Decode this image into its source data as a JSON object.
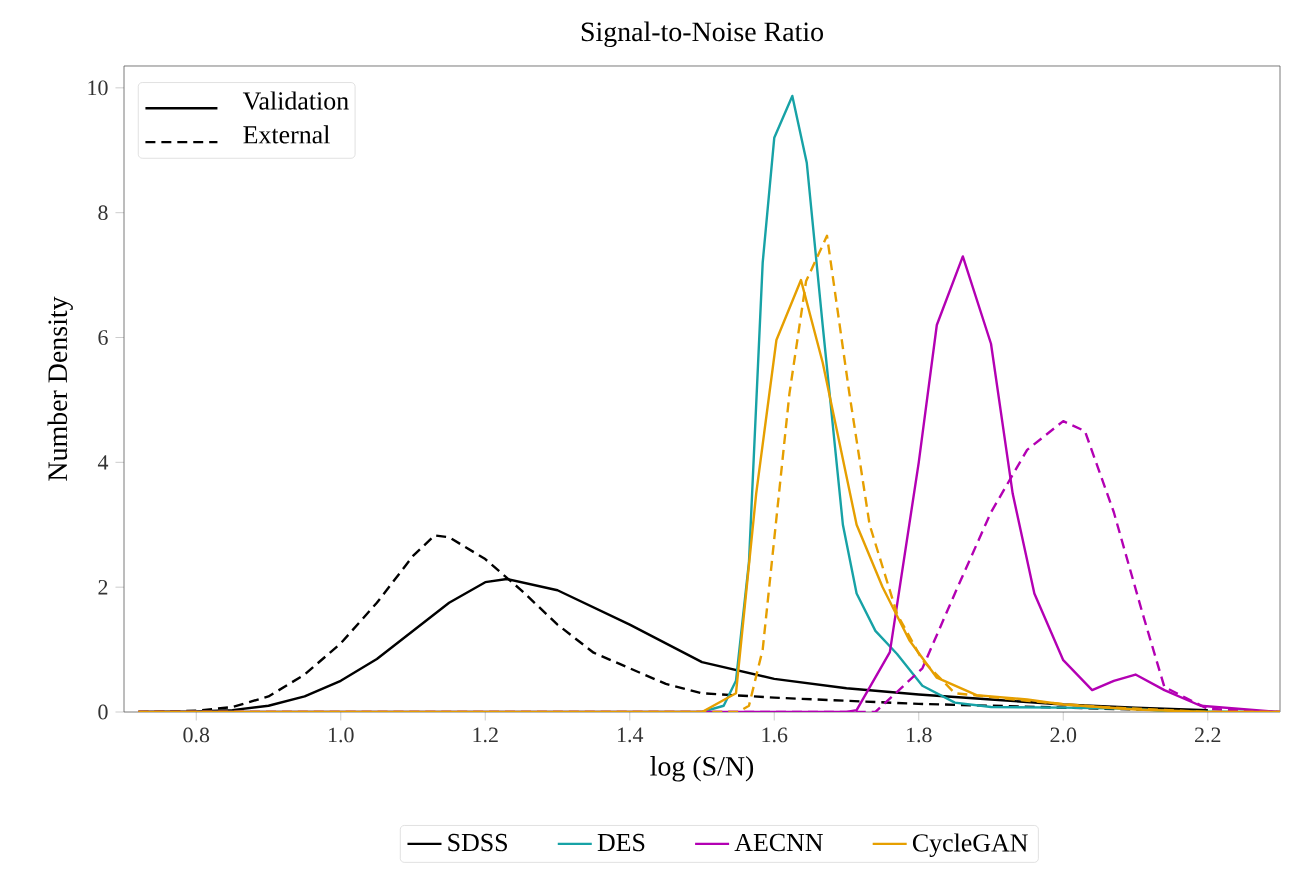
{
  "chart_data": {
    "type": "line",
    "title": "Signal-to-Noise Ratio",
    "xlabel": "log (S/N)",
    "ylabel": "Number Density",
    "xlim": [
      0.7,
      2.3
    ],
    "ylim": [
      0,
      10.35
    ],
    "xticks": [
      0.8,
      {
        "value": 1.0,
        "label": "1.0"
      },
      1.2,
      1.4,
      1.6,
      1.8,
      {
        "value": 2.0,
        "label": "2.0"
      },
      2.2
    ],
    "yticks": [
      0,
      2,
      4,
      6,
      8,
      10
    ],
    "legend": "bottom",
    "grid": false,
    "marker": "none",
    "annotations": [
      "Validation",
      "External"
    ],
    "series": [
      {
        "name": "SDSS",
        "color": "#000000",
        "line_style": "solid",
        "x": [
          0.72,
          0.8,
          0.85,
          0.9,
          0.95,
          1.0,
          1.05,
          1.1,
          1.15,
          1.2,
          1.23,
          1.3,
          1.4,
          1.5,
          1.6,
          1.7,
          1.8,
          1.9,
          2.0,
          2.1,
          2.2
        ],
        "values": [
          0,
          0.01,
          0.03,
          0.1,
          0.25,
          0.5,
          0.85,
          1.3,
          1.75,
          2.08,
          2.13,
          1.95,
          1.4,
          0.8,
          0.53,
          0.38,
          0.28,
          0.2,
          0.12,
          0.07,
          0.03
        ]
      },
      {
        "color": "#000000",
        "line_style": "dashed",
        "x": [
          0.72,
          0.8,
          0.85,
          0.9,
          0.95,
          1.0,
          1.05,
          1.1,
          1.13,
          1.15,
          1.2,
          1.25,
          1.3,
          1.35,
          1.4,
          1.45,
          1.5,
          1.6,
          1.7,
          1.8,
          1.9,
          2.0,
          2.1,
          2.2
        ],
        "values": [
          0,
          0.02,
          0.08,
          0.25,
          0.6,
          1.1,
          1.75,
          2.5,
          2.83,
          2.8,
          2.45,
          1.95,
          1.4,
          0.95,
          0.7,
          0.45,
          0.3,
          0.23,
          0.18,
          0.13,
          0.1,
          0.07,
          0.04,
          0.02
        ]
      },
      {
        "name": "DES",
        "color": "#17a2a6",
        "line_style": "solid",
        "x": [
          0.72,
          1.5,
          1.53,
          1.547,
          1.565,
          1.584,
          1.6,
          1.625,
          1.645,
          1.667,
          1.695,
          1.714,
          1.74,
          1.77,
          1.805,
          1.85,
          1.9,
          2.0,
          2.1,
          2.15,
          2.3
        ],
        "values": [
          0,
          0,
          0.1,
          0.5,
          2.4,
          7.2,
          9.2,
          9.87,
          8.8,
          6.2,
          3.0,
          1.9,
          1.3,
          0.93,
          0.42,
          0.15,
          0.08,
          0.07,
          0.05,
          0.01,
          0
        ]
      },
      {
        "name": "AECNN",
        "color": "#b300b3",
        "line_style": "solid",
        "x": [
          0.72,
          1.7,
          1.714,
          1.76,
          1.8,
          1.825,
          1.861,
          1.9,
          1.93,
          1.96,
          2.0,
          2.04,
          2.07,
          2.1,
          2.14,
          2.19,
          2.3
        ],
        "values": [
          0,
          0,
          0.03,
          0.96,
          4.0,
          6.2,
          7.3,
          5.9,
          3.5,
          1.9,
          0.83,
          0.35,
          0.5,
          0.6,
          0.35,
          0.1,
          0
        ]
      },
      {
        "color": "#b300b3",
        "line_style": "dashed",
        "x": [
          0.72,
          1.74,
          1.805,
          1.85,
          1.9,
          1.95,
          2.0,
          2.03,
          2.07,
          2.11,
          2.14,
          2.2,
          2.3
        ],
        "values": [
          0,
          0,
          0.7,
          1.9,
          3.2,
          4.2,
          4.66,
          4.5,
          3.2,
          1.57,
          0.4,
          0.05,
          0
        ]
      },
      {
        "name": "CycleGAN",
        "color": "#e69f00",
        "line_style": "solid",
        "x": [
          0.72,
          1.5,
          1.547,
          1.575,
          1.603,
          1.637,
          1.667,
          1.714,
          1.75,
          1.787,
          1.825,
          1.88,
          1.95,
          2.0,
          2.1,
          2.2,
          2.3
        ],
        "values": [
          0,
          0,
          0.3,
          3.5,
          5.96,
          6.92,
          5.6,
          3.0,
          2.0,
          1.15,
          0.55,
          0.27,
          0.2,
          0.12,
          0.04,
          0,
          0
        ]
      },
      {
        "color": "#e69f00",
        "line_style": "dashed",
        "x": [
          0.72,
          1.55,
          1.565,
          1.584,
          1.621,
          1.644,
          1.673,
          1.704,
          1.732,
          1.77,
          1.805,
          1.85,
          1.95,
          2.05,
          2.2,
          2.3
        ],
        "values": [
          0,
          0,
          0.1,
          1.0,
          5.1,
          6.9,
          7.63,
          5.1,
          3.0,
          1.57,
          0.83,
          0.3,
          0.18,
          0.08,
          0,
          0
        ]
      }
    ]
  }
}
